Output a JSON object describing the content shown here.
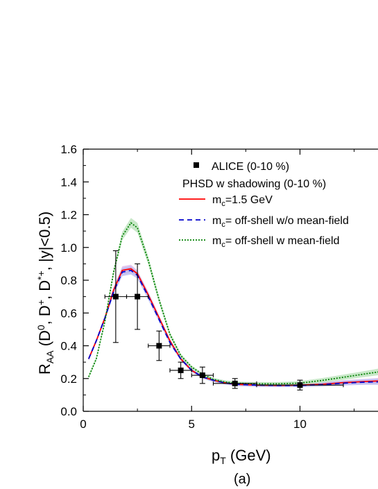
{
  "chart_data": {
    "type": "line",
    "xlabel": {
      "main": "p",
      "sub": "T",
      "rest": " (GeV)"
    },
    "ylabel": {
      "main": "R",
      "sub": "AA",
      "rest_parts": [
        {
          "t": " (D",
          "s": ""
        },
        {
          "t": "",
          "s": "0"
        },
        {
          "t": ", D",
          "s": ""
        },
        {
          "t": "",
          "s": "+"
        },
        {
          "t": ", D",
          "s": ""
        },
        {
          "t": "",
          "s": "*+"
        },
        {
          "t": ", |y|<0.5)",
          "s": ""
        }
      ]
    },
    "panel_label": "(a)",
    "xlim": [
      0,
      13.6
    ],
    "ylim": [
      0,
      1.6
    ],
    "xticks": [
      0,
      5,
      10
    ],
    "yticks": [
      0.0,
      0.2,
      0.4,
      0.6,
      0.8,
      1.0,
      1.2,
      1.4,
      1.6
    ],
    "ytick_labels": [
      "0.0",
      "0.2",
      "0.4",
      "0.6",
      "0.8",
      "1.0",
      "1.2",
      "1.4",
      "1.6"
    ],
    "xtick_labels": [
      "0",
      "5",
      "10"
    ],
    "legend": {
      "data_label": "ALICE (0-10 %)",
      "group_title": "PHSD w shadowing (0-10 %)",
      "entries": [
        {
          "prefix": "m",
          "sub": "c",
          "text": "=1.5 GeV"
        },
        {
          "prefix": "m",
          "sub": "c",
          "text": "= off-shell w/o mean-field"
        },
        {
          "prefix": "m",
          "sub": "c",
          "text": "= off-shell w mean-field"
        }
      ]
    },
    "data_points": {
      "x": [
        1.5,
        2.5,
        3.5,
        4.5,
        5.5,
        7.0,
        10.0
      ],
      "y": [
        0.7,
        0.7,
        0.4,
        0.25,
        0.22,
        0.17,
        0.16
      ],
      "xerr": [
        0.5,
        0.5,
        0.5,
        0.5,
        0.5,
        1.0,
        2.0
      ],
      "yerr": [
        0.28,
        0.2,
        0.09,
        0.05,
        0.05,
        0.03,
        0.03
      ]
    },
    "series": [
      {
        "color": "#ff0000",
        "dash": "solid",
        "band": "#d8b4e8",
        "x": [
          0.25,
          0.6,
          1.0,
          1.4,
          1.8,
          2.2,
          2.5,
          3.0,
          3.5,
          4.0,
          4.5,
          5.0,
          5.5,
          6.0,
          6.5,
          7.0,
          8.0,
          9.0,
          10.0,
          11.0,
          12.0,
          13.0,
          13.6
        ],
        "y": [
          0.32,
          0.43,
          0.57,
          0.74,
          0.86,
          0.87,
          0.84,
          0.71,
          0.57,
          0.43,
          0.32,
          0.25,
          0.21,
          0.19,
          0.175,
          0.165,
          0.16,
          0.158,
          0.16,
          0.165,
          0.175,
          0.182,
          0.185
        ],
        "band_width": [
          0.01,
          0.01,
          0.015,
          0.02,
          0.025,
          0.025,
          0.02,
          0.02,
          0.015,
          0.012,
          0.01,
          0.01,
          0.01,
          0.01,
          0.01,
          0.01,
          0.01,
          0.01,
          0.01,
          0.012,
          0.014,
          0.016,
          0.018
        ]
      },
      {
        "color": "#0000cc",
        "dash": "dashed",
        "band": "#b8b8f0",
        "x": [
          0.25,
          0.6,
          1.0,
          1.4,
          1.8,
          2.2,
          2.5,
          3.0,
          3.5,
          4.0,
          4.5,
          5.0,
          5.5,
          6.0,
          6.5,
          7.0,
          8.0,
          9.0,
          10.0,
          11.0,
          12.0,
          13.0,
          13.6
        ],
        "y": [
          0.32,
          0.43,
          0.57,
          0.73,
          0.85,
          0.86,
          0.83,
          0.7,
          0.56,
          0.42,
          0.32,
          0.25,
          0.21,
          0.19,
          0.175,
          0.165,
          0.16,
          0.158,
          0.158,
          0.163,
          0.172,
          0.178,
          0.18
        ],
        "band_width": [
          0.01,
          0.01,
          0.015,
          0.02,
          0.025,
          0.025,
          0.02,
          0.02,
          0.015,
          0.012,
          0.01,
          0.01,
          0.01,
          0.01,
          0.01,
          0.01,
          0.01,
          0.01,
          0.01,
          0.012,
          0.014,
          0.016,
          0.018
        ]
      },
      {
        "color": "#008000",
        "dash": "dotted",
        "band": "#b5e0b5",
        "x": [
          0.25,
          0.6,
          1.0,
          1.4,
          1.8,
          2.2,
          2.5,
          3.0,
          3.5,
          4.0,
          4.5,
          5.0,
          5.5,
          6.0,
          6.5,
          7.0,
          8.0,
          9.0,
          10.0,
          11.0,
          12.0,
          13.0,
          13.6
        ],
        "y": [
          0.21,
          0.32,
          0.55,
          0.85,
          1.07,
          1.15,
          1.12,
          0.92,
          0.68,
          0.47,
          0.34,
          0.27,
          0.225,
          0.195,
          0.18,
          0.172,
          0.168,
          0.168,
          0.172,
          0.188,
          0.208,
          0.228,
          0.24
        ],
        "band_width": [
          0.01,
          0.01,
          0.015,
          0.02,
          0.025,
          0.03,
          0.03,
          0.025,
          0.02,
          0.015,
          0.012,
          0.01,
          0.01,
          0.01,
          0.01,
          0.01,
          0.01,
          0.01,
          0.012,
          0.014,
          0.016,
          0.018,
          0.02
        ]
      }
    ]
  }
}
